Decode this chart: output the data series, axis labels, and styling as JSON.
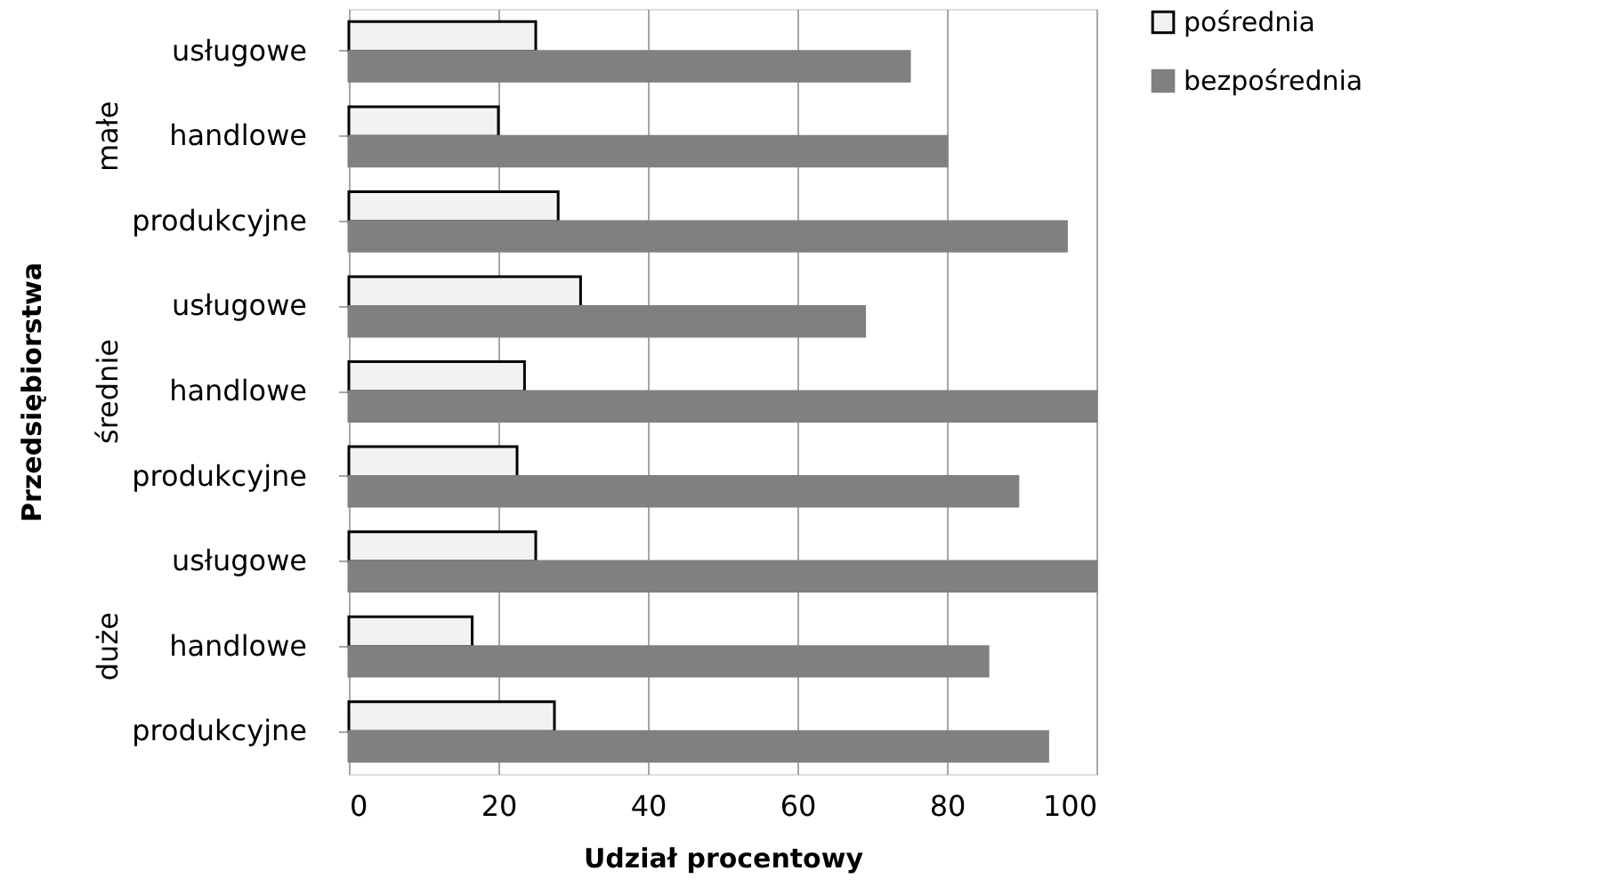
{
  "chart_data": {
    "type": "bar",
    "orientation": "horizontal",
    "xlabel": "Udział procentowy",
    "ylabel": "Przedsiębiorstwa",
    "categories": [
      "usługowe",
      "handlowe",
      "produkcyjne",
      "usługowe",
      "handlowe",
      "produkcyjne",
      "usługowe",
      "handlowe",
      "produkcyjne"
    ],
    "annotations": [
      "małe",
      "średnie",
      "duże"
    ],
    "series": [
      {
        "name": "pośrednia",
        "color": "#f2f2f2",
        "values": [
          25,
          20,
          28,
          31,
          23.5,
          22.5,
          25,
          16.5,
          27.5
        ]
      },
      {
        "name": "bezpośrednia",
        "color": "#808080",
        "values": [
          75,
          80,
          96,
          69,
          100,
          89.5,
          100,
          85.5,
          93.5
        ]
      }
    ],
    "xlim": [
      0,
      100
    ],
    "xticks": [
      0,
      20,
      40,
      60,
      80,
      100
    ],
    "grid": "x",
    "legend": "right"
  }
}
